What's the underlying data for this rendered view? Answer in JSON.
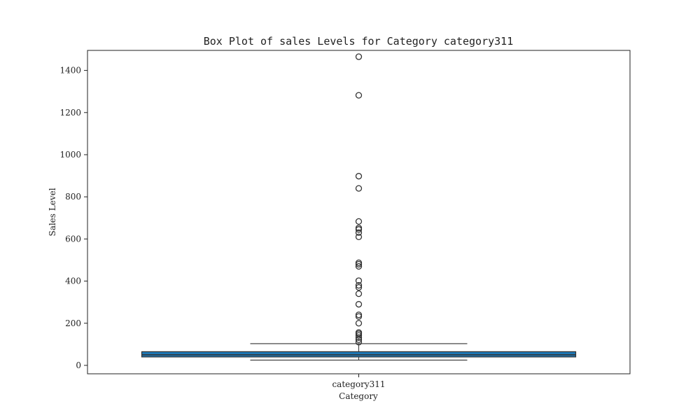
{
  "chart_data": {
    "type": "box",
    "title": "Box Plot of sales Levels for Category category311",
    "xlabel": "Category",
    "ylabel": "Sales Level",
    "categories": [
      "category311"
    ],
    "ylim": [
      -40,
      1495
    ],
    "yticks": [
      0,
      200,
      400,
      600,
      800,
      1000,
      1200,
      1400
    ],
    "grid": false,
    "legend": "none",
    "box_color": "#1f77b4",
    "edge_color": "#333333",
    "boxes": [
      {
        "category": "category311",
        "whisker_low": 25,
        "q1": 40,
        "median": 50,
        "q3": 65,
        "whisker_high": 103,
        "outliers": [
          110,
          122,
          132,
          142,
          150,
          156,
          200,
          232,
          240,
          290,
          340,
          370,
          380,
          402,
          470,
          480,
          487,
          610,
          630,
          645,
          652,
          683,
          840,
          898,
          1282,
          1465
        ]
      }
    ]
  }
}
